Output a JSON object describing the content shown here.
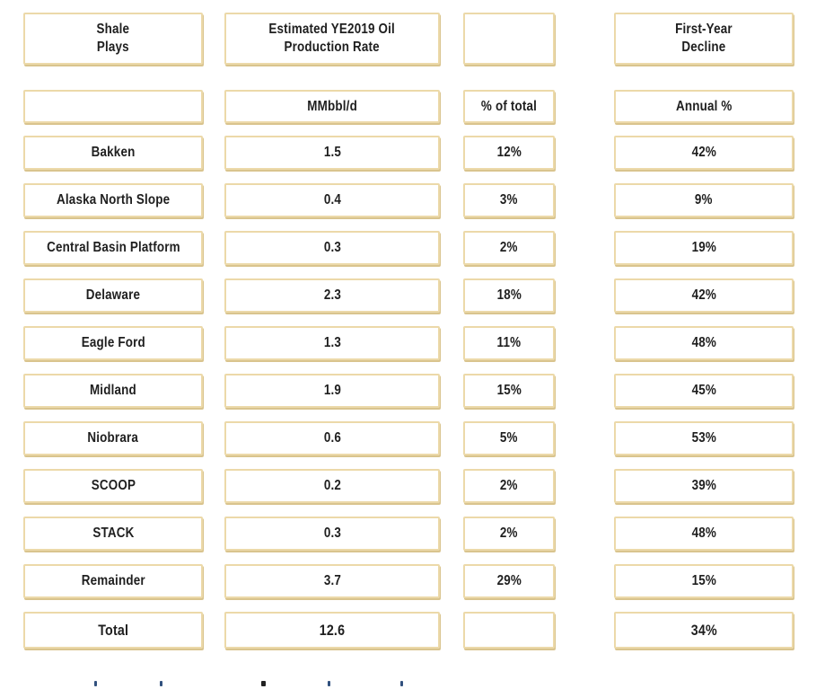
{
  "table": {
    "header": {
      "shale_plays": "Shale\nPlays",
      "production_rate": "Estimated YE2019 Oil\nProduction Rate",
      "first_year_decline": "First-Year\nDecline"
    },
    "units": {
      "rate": "MMbbl/d",
      "pct_of_total": "% of total",
      "annual_pct": "Annual %"
    },
    "rows": [
      {
        "play": "Bakken",
        "rate": "1.5",
        "pct": "12%",
        "decline": "42%"
      },
      {
        "play": "Alaska North Slope",
        "rate": "0.4",
        "pct": "3%",
        "decline": "9%"
      },
      {
        "play": "Central Basin Platform",
        "rate": "0.3",
        "pct": "2%",
        "decline": "19%"
      },
      {
        "play": "Delaware",
        "rate": "2.3",
        "pct": "18%",
        "decline": "42%"
      },
      {
        "play": "Eagle Ford",
        "rate": "1.3",
        "pct": "11%",
        "decline": "48%"
      },
      {
        "play": "Midland",
        "rate": "1.9",
        "pct": "15%",
        "decline": "45%"
      },
      {
        "play": "Niobrara",
        "rate": "0.6",
        "pct": "5%",
        "decline": "53%"
      },
      {
        "play": "SCOOP",
        "rate": "0.2",
        "pct": "2%",
        "decline": "39%"
      },
      {
        "play": "STACK",
        "rate": "0.3",
        "pct": "2%",
        "decline": "48%"
      },
      {
        "play": "Remainder",
        "rate": "3.7",
        "pct": "29%",
        "decline": "15%"
      }
    ],
    "total": {
      "label": "Total",
      "rate": "12.6",
      "decline": "34%"
    }
  },
  "chart_data": {
    "type": "table",
    "columns": [
      "Shale Plays",
      "Estimated YE2019 Oil Production Rate (MMbbl/d)",
      "% of total",
      "First-Year Decline (Annual %)"
    ],
    "rows": [
      {
        "play": "Bakken",
        "rate_mmbbl_d": 1.5,
        "pct_of_total": 12,
        "first_year_decline_pct": 42
      },
      {
        "play": "Alaska North Slope",
        "rate_mmbbl_d": 0.4,
        "pct_of_total": 3,
        "first_year_decline_pct": 9
      },
      {
        "play": "Central Basin Platform",
        "rate_mmbbl_d": 0.3,
        "pct_of_total": 2,
        "first_year_decline_pct": 19
      },
      {
        "play": "Delaware",
        "rate_mmbbl_d": 2.3,
        "pct_of_total": 18,
        "first_year_decline_pct": 42
      },
      {
        "play": "Eagle Ford",
        "rate_mmbbl_d": 1.3,
        "pct_of_total": 11,
        "first_year_decline_pct": 48
      },
      {
        "play": "Midland",
        "rate_mmbbl_d": 1.9,
        "pct_of_total": 15,
        "first_year_decline_pct": 45
      },
      {
        "play": "Niobrara",
        "rate_mmbbl_d": 0.6,
        "pct_of_total": 5,
        "first_year_decline_pct": 53
      },
      {
        "play": "SCOOP",
        "rate_mmbbl_d": 0.2,
        "pct_of_total": 2,
        "first_year_decline_pct": 39
      },
      {
        "play": "STACK",
        "rate_mmbbl_d": 0.3,
        "pct_of_total": 2,
        "first_year_decline_pct": 48
      },
      {
        "play": "Remainder",
        "rate_mmbbl_d": 3.7,
        "pct_of_total": 29,
        "first_year_decline_pct": 15
      }
    ],
    "total": {
      "play": "Total",
      "rate_mmbbl_d": 12.6,
      "first_year_decline_pct": 34
    }
  },
  "colors": {
    "box_border": "#ecd9a9",
    "box_shadow": "#d9c48e",
    "text": "#1f1f1f",
    "background": "#ffffff"
  }
}
